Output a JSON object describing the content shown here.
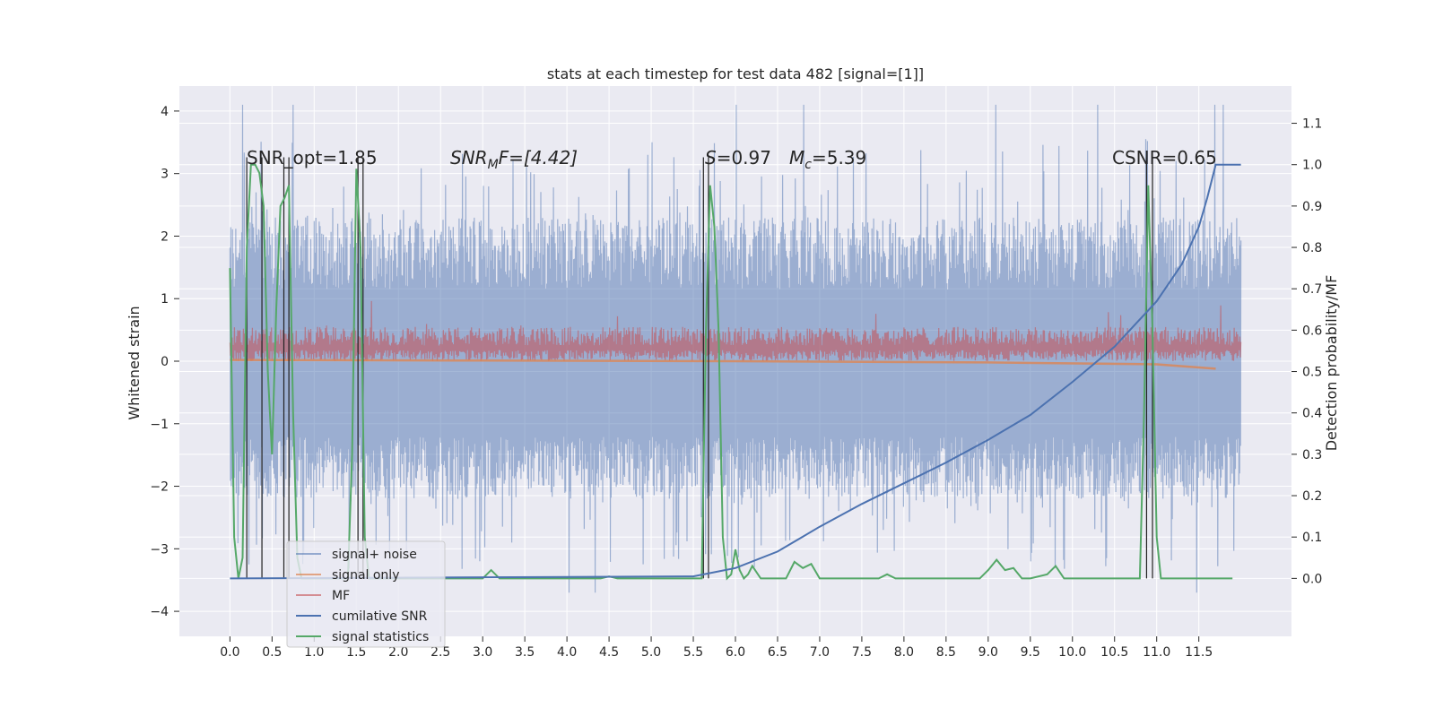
{
  "chart_data": {
    "type": "line",
    "title": "stats at each timestep for test data 482 [signal=[1]]",
    "ylabel_left": "Whitened strain",
    "ylabel_right": "Detection probability/MF",
    "xlim": [
      -0.6,
      12.6
    ],
    "ylim_left": [
      -4.4,
      4.4
    ],
    "ylim_right": [
      -0.14,
      1.19
    ],
    "x_ticks": [
      "0.0",
      "0.5",
      "1.0",
      "1.5",
      "2.0",
      "2.5",
      "3.0",
      "3.5",
      "4.0",
      "4.5",
      "5.0",
      "5.5",
      "6.0",
      "6.5",
      "7.0",
      "7.5",
      "8.0",
      "8.5",
      "9.0",
      "9.5",
      "10.0",
      "10.5",
      "11.0",
      "11.5"
    ],
    "y_ticks_left": [
      "4",
      "3",
      "2",
      "1",
      "0",
      "−1",
      "−2",
      "−3",
      "−4"
    ],
    "y_ticks_right": [
      "1.1",
      "1.0",
      "0.9",
      "0.8",
      "0.7",
      "0.6",
      "0.5",
      "0.4",
      "0.3",
      "0.2",
      "0.1",
      "0.0"
    ],
    "grid": true,
    "legend_position": "bottom-left",
    "legend": [
      "signal+ noise",
      "signal only",
      "MF",
      "cumilative SNR",
      "signal statistics"
    ],
    "annotations": {
      "snr_opt": "SNR_opt=1.85",
      "snr_mf_main": "SNR",
      "snr_mf_sub": "M",
      "snr_mf_rest": "F=[4.42]",
      "s_main": "S",
      "s_rest": "=0.97",
      "mc_main": "M",
      "mc_sub": "c",
      "mc_rest": "=5.39",
      "csnr": "CSNR=0.65"
    },
    "series": [
      {
        "name": "signal+ noise",
        "axis": "left",
        "color": "#4c72b0",
        "x_range": [
          0.0,
          12.0
        ],
        "envelope": [
          -2.2,
          2.3
        ],
        "peaks_max": 4.1,
        "peaks_min": -3.7
      },
      {
        "name": "signal only",
        "axis": "left",
        "color": "#dd8452",
        "x": [
          0.0,
          3.0,
          6.0,
          9.0,
          11.0,
          11.7
        ],
        "y": [
          0.02,
          0.01,
          0.0,
          -0.02,
          -0.05,
          -0.12
        ]
      },
      {
        "name": "MF",
        "axis": "left",
        "color": "#c44e52",
        "x_range": [
          0.0,
          12.0
        ],
        "envelope": [
          0.0,
          0.55
        ],
        "peaks_max": 0.97
      },
      {
        "name": "cumilative SNR",
        "axis": "right",
        "color": "#4c72b0",
        "x": [
          0.0,
          5.5,
          6.0,
          6.5,
          7.0,
          7.5,
          8.0,
          8.5,
          9.0,
          9.5,
          10.0,
          10.5,
          11.0,
          11.3,
          11.5,
          11.6,
          11.7,
          12.0
        ],
        "y": [
          0.0,
          0.005,
          0.025,
          0.065,
          0.125,
          0.18,
          0.23,
          0.28,
          0.335,
          0.395,
          0.475,
          0.56,
          0.67,
          0.76,
          0.85,
          0.92,
          1.0,
          1.0
        ]
      },
      {
        "name": "signal statistics",
        "axis": "right",
        "color": "#55a868",
        "x": [
          0.0,
          0.05,
          0.1,
          0.15,
          0.2,
          0.25,
          0.3,
          0.35,
          0.4,
          0.45,
          0.5,
          0.55,
          0.6,
          0.65,
          0.7,
          0.75,
          0.8,
          0.85,
          1.4,
          1.45,
          1.5,
          1.55,
          1.6,
          1.65,
          1.7,
          3.0,
          3.1,
          3.2,
          4.4,
          4.5,
          4.6,
          5.6,
          5.65,
          5.7,
          5.75,
          5.8,
          5.85,
          5.9,
          5.95,
          6.0,
          6.05,
          6.1,
          6.15,
          6.2,
          6.3,
          6.4,
          6.5,
          6.6,
          6.7,
          6.8,
          6.9,
          7.0,
          7.1,
          7.7,
          7.8,
          7.9,
          8.9,
          9.0,
          9.1,
          9.2,
          9.3,
          9.4,
          9.5,
          9.7,
          9.8,
          9.9,
          10.0,
          10.8,
          10.85,
          10.9,
          10.95,
          11.0,
          11.05,
          11.1,
          11.9
        ],
        "y": [
          0.75,
          0.1,
          0.0,
          0.05,
          0.8,
          1.0,
          1.0,
          0.98,
          0.9,
          0.5,
          0.3,
          0.65,
          0.9,
          0.92,
          0.95,
          0.4,
          0.05,
          0.0,
          0.0,
          0.3,
          0.99,
          0.8,
          0.1,
          0.0,
          0.0,
          0.0,
          0.02,
          0.0,
          0.0,
          0.005,
          0.0,
          0.0,
          0.6,
          0.95,
          0.85,
          0.6,
          0.1,
          0.0,
          0.01,
          0.07,
          0.02,
          0.0,
          0.01,
          0.03,
          0.0,
          0.0,
          0.0,
          0.0,
          0.04,
          0.025,
          0.035,
          0.0,
          0.0,
          0.0,
          0.01,
          0.0,
          0.0,
          0.02,
          0.045,
          0.02,
          0.025,
          0.0,
          0.0,
          0.01,
          0.03,
          0.0,
          0.0,
          0.0,
          0.4,
          0.95,
          0.6,
          0.1,
          0.0,
          0.0,
          0.0
        ]
      },
      {
        "name": "markers",
        "axis": "left",
        "color": "#222222",
        "x": [
          0.2,
          0.38,
          0.64,
          0.7,
          1.52,
          1.58,
          5.62,
          5.68,
          10.88,
          10.95
        ],
        "y_top": 3.26
      }
    ]
  }
}
